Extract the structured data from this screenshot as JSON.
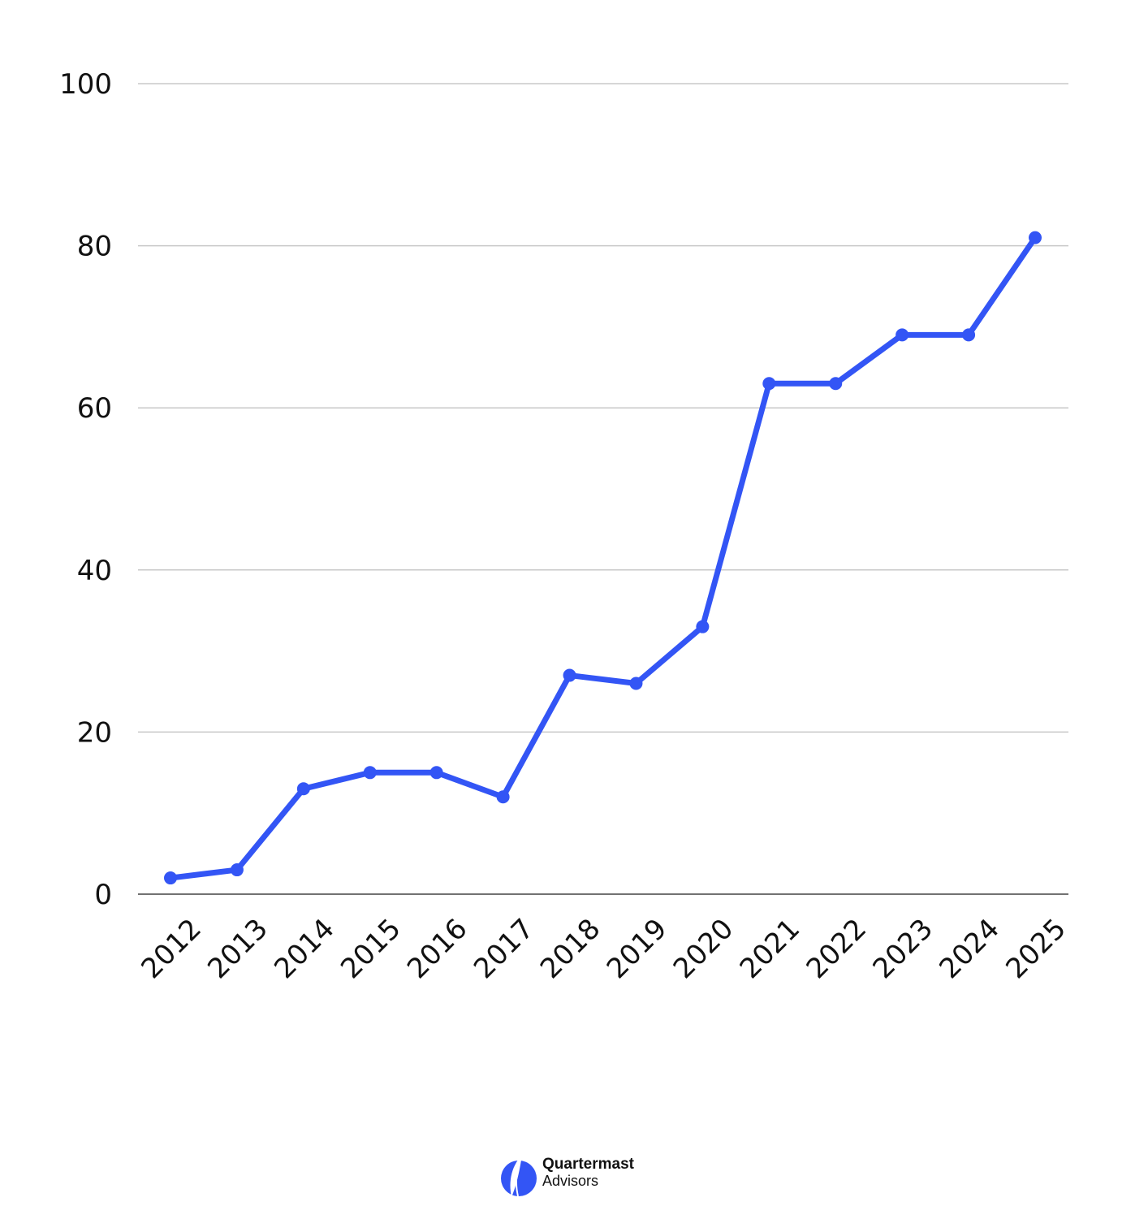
{
  "chart_data": {
    "type": "line",
    "title": "",
    "xlabel": "",
    "ylabel": "",
    "categories": [
      "2012",
      "2013",
      "2014",
      "2015",
      "2016",
      "2017",
      "2018",
      "2019",
      "2020",
      "2021",
      "2022",
      "2023",
      "2024",
      "2025"
    ],
    "series": [
      {
        "values": [
          2,
          3,
          13,
          15,
          15,
          12,
          27,
          26,
          33,
          63,
          63,
          69,
          69,
          81
        ]
      }
    ],
    "ylim": [
      0,
      100
    ],
    "yticks": [
      0,
      20,
      40,
      60,
      80,
      100
    ],
    "grid": true,
    "legend": "none",
    "line_color": "#3355f5"
  },
  "branding": {
    "name": "Quartermast",
    "sub": "Advisors",
    "color": "#3355f5",
    "icon": "sail-icon"
  }
}
